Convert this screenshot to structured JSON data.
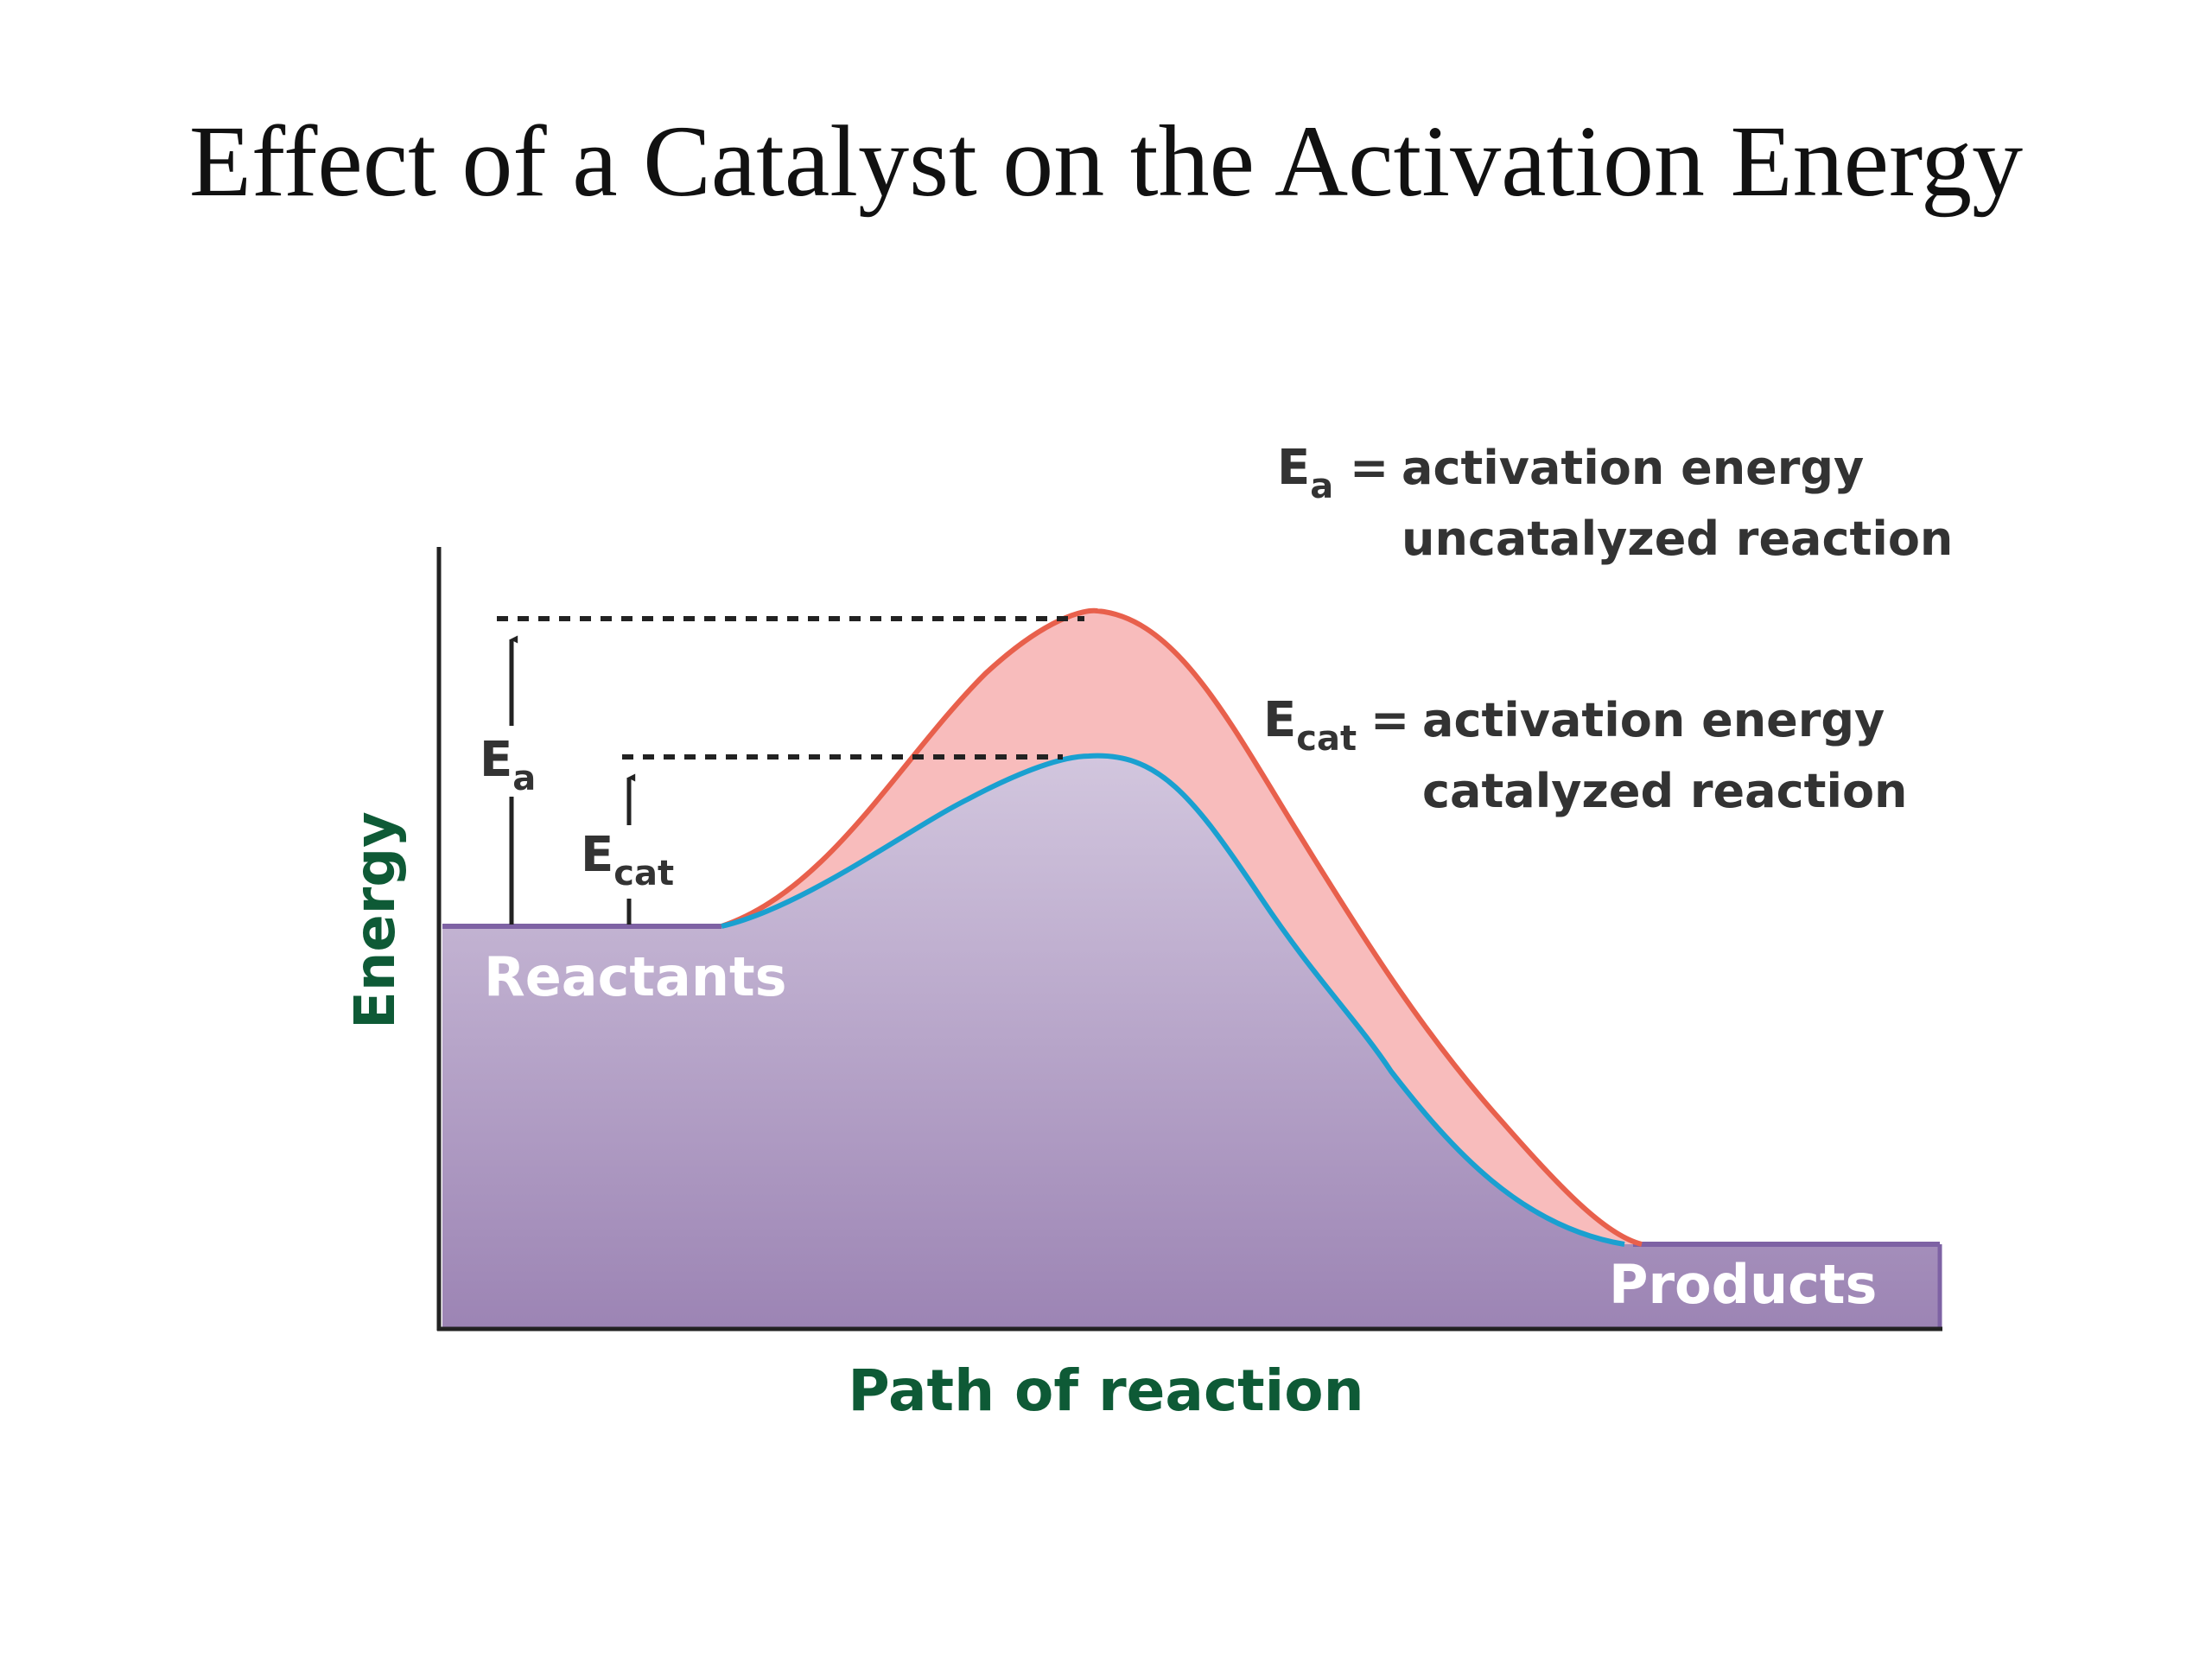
{
  "title": "Effect of a Catalyst on the Activation Energy",
  "diagram": {
    "y_axis_label": "Energy",
    "x_axis_label": "Path of reaction",
    "reactants_label": "Reactants",
    "products_label": "Products",
    "ea_symbol": "E",
    "ea_subscript": "a",
    "ecat_symbol": "E",
    "ecat_subscript": "cat",
    "legend": {
      "ea": {
        "symbol": "E",
        "subscript": "a",
        "equals": "=",
        "line1": "activation energy",
        "line2": "uncatalyzed reaction"
      },
      "ecat": {
        "symbol": "E",
        "subscript": "cat",
        "equals": "=",
        "line1": "activation energy",
        "line2": "catalyzed reaction"
      }
    },
    "colors": {
      "uncatalyzed_curve": "#e8604c",
      "catalyzed_curve": "#1aa0d0",
      "uncatalyzed_fill": "#f8bcbc",
      "catalyzed_fill_top": "#d2c6de",
      "catalyzed_fill_bottom": "#9c84b4",
      "axis_label": "#0e5a36",
      "area_label": "#ffffff"
    }
  }
}
